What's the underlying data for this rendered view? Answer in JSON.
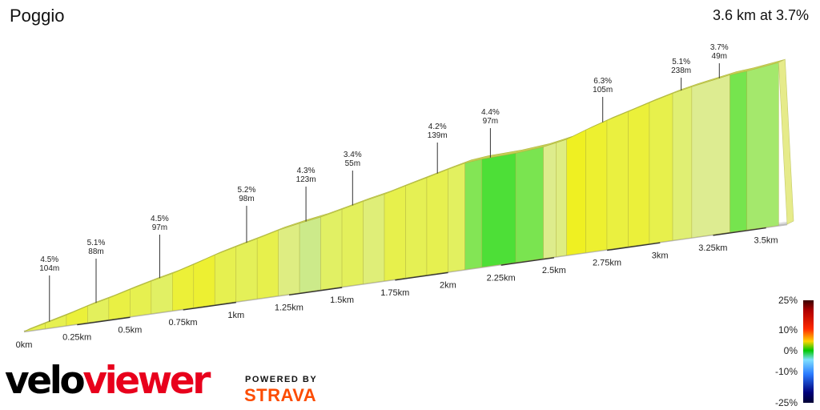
{
  "header": {
    "title": "Poggio",
    "summary": "3.6 km at 3.7%"
  },
  "chart_data": {
    "type": "area",
    "title": "Poggio",
    "subtitle": "3.6 km at 3.7%",
    "x_unit": "km",
    "x_ticks": [
      "0km",
      "0.25km",
      "0.5km",
      "0.75km",
      "1km",
      "1.25km",
      "1.5km",
      "1.75km",
      "2km",
      "2.25km",
      "2.5km",
      "2.75km",
      "3km",
      "3.25km",
      "3.5km"
    ],
    "x_tick_values": [
      0,
      0.25,
      0.5,
      0.75,
      1,
      1.25,
      1.5,
      1.75,
      2,
      2.25,
      2.5,
      2.75,
      3,
      3.25,
      3.5
    ],
    "xlim": [
      0,
      3.6
    ],
    "segments": [
      {
        "gradient_label": "4.5%",
        "length_label": "104m",
        "grade": 4.5,
        "length_m": 104
      },
      {
        "gradient_label": "5.1%",
        "length_label": "88m",
        "grade": 5.1,
        "length_m": 88
      },
      {
        "gradient_label": "4.5%",
        "length_label": "97m",
        "grade": 4.5,
        "length_m": 97
      },
      {
        "gradient_label": "5.2%",
        "length_label": "98m",
        "grade": 5.2,
        "length_m": 98
      },
      {
        "gradient_label": "4.3%",
        "length_label": "123m",
        "grade": 4.3,
        "length_m": 123
      },
      {
        "gradient_label": "3.4%",
        "length_label": "55m",
        "grade": 3.4,
        "length_m": 55
      },
      {
        "gradient_label": "4.2%",
        "length_label": "139m",
        "grade": 4.2,
        "length_m": 139
      },
      {
        "gradient_label": "4.4%",
        "length_label": "97m",
        "grade": 4.4,
        "length_m": 97
      },
      {
        "gradient_label": "6.3%",
        "length_label": "105m",
        "grade": 6.3,
        "length_m": 105
      },
      {
        "gradient_label": "5.1%",
        "length_label": "238m",
        "grade": 5.1,
        "length_m": 238
      },
      {
        "gradient_label": "3.7%",
        "length_label": "49m",
        "grade": 3.7,
        "length_m": 49
      }
    ],
    "profile": [
      {
        "km": 0.0,
        "grade": 4.5
      },
      {
        "km": 0.1,
        "grade": 4.5
      },
      {
        "km": 0.2,
        "grade": 5.1
      },
      {
        "km": 0.3,
        "grade": 4.2
      },
      {
        "km": 0.4,
        "grade": 4.8
      },
      {
        "km": 0.5,
        "grade": 4.5
      },
      {
        "km": 0.6,
        "grade": 4.0
      },
      {
        "km": 0.7,
        "grade": 5.2
      },
      {
        "km": 0.8,
        "grade": 5.5
      },
      {
        "km": 0.9,
        "grade": 4.5
      },
      {
        "km": 1.0,
        "grade": 4.3
      },
      {
        "km": 1.1,
        "grade": 4.6
      },
      {
        "km": 1.2,
        "grade": 3.4
      },
      {
        "km": 1.3,
        "grade": 2.8
      },
      {
        "km": 1.4,
        "grade": 4.0
      },
      {
        "km": 1.5,
        "grade": 4.2
      },
      {
        "km": 1.6,
        "grade": 3.6
      },
      {
        "km": 1.7,
        "grade": 4.6
      },
      {
        "km": 1.8,
        "grade": 4.4
      },
      {
        "km": 1.9,
        "grade": 4.5
      },
      {
        "km": 2.0,
        "grade": 4.1
      },
      {
        "km": 2.08,
        "grade": 1.8
      },
      {
        "km": 2.16,
        "grade": 0.6
      },
      {
        "km": 2.32,
        "grade": 1.6
      },
      {
        "km": 2.45,
        "grade": 3.2
      },
      {
        "km": 2.51,
        "grade": 3.4
      },
      {
        "km": 2.56,
        "grade": 6.3
      },
      {
        "km": 2.65,
        "grade": 5.6
      },
      {
        "km": 2.75,
        "grade": 4.9
      },
      {
        "km": 2.85,
        "grade": 5.1
      },
      {
        "km": 2.95,
        "grade": 4.6
      },
      {
        "km": 3.06,
        "grade": 3.7
      },
      {
        "km": 3.15,
        "grade": 3.1
      },
      {
        "km": 3.33,
        "grade": 1.5
      },
      {
        "km": 3.41,
        "grade": 2.3
      },
      {
        "km": 3.56,
        "grade": 3.0
      }
    ],
    "color_scale": [
      "25%",
      "10%",
      "0%",
      "-10%",
      "-25%"
    ]
  },
  "branding": {
    "logo_velo": "velo",
    "logo_viewer": "viewer",
    "powered_by": "POWERED BY",
    "strava": "STRAVA"
  }
}
